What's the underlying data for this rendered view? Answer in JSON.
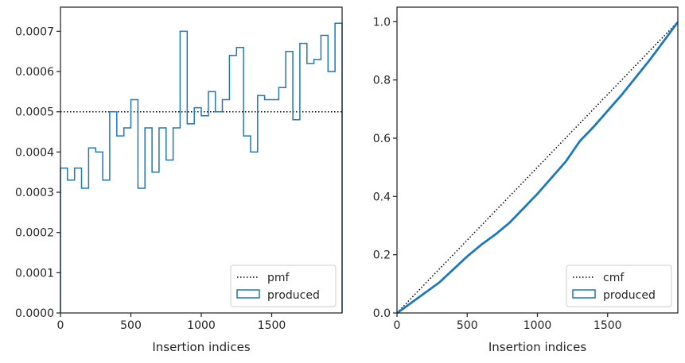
{
  "chart_data": [
    {
      "type": "step",
      "title": "",
      "xlabel": "Insertion indices",
      "ylabel": "",
      "xlim": [
        0,
        2000
      ],
      "ylim": [
        0,
        0.00076
      ],
      "xticks": [
        0,
        500,
        1000,
        1500
      ],
      "xtick_labels": [
        "0",
        "500",
        "1000",
        "1500"
      ],
      "yticks": [
        0,
        0.0001,
        0.0002,
        0.0003,
        0.0004,
        0.0005,
        0.0006,
        0.0007
      ],
      "ytick_labels": [
        "0.0000",
        "0.0001",
        "0.0002",
        "0.0003",
        "0.0004",
        "0.0005",
        "0.0006",
        "0.0007"
      ],
      "legend": {
        "location": "lower-right",
        "entries": [
          "pmf",
          "produced"
        ]
      },
      "series": [
        {
          "name": "pmf",
          "style": "dotted",
          "color": "#000000",
          "x": [
            0,
            2000
          ],
          "y": [
            0.0005,
            0.0005
          ]
        },
        {
          "name": "produced",
          "style": "step-histogram",
          "color": "#1f77b4",
          "bin_edges": [
            0,
            50,
            100,
            150,
            200,
            250,
            300,
            350,
            400,
            450,
            500,
            550,
            600,
            650,
            700,
            750,
            800,
            850,
            900,
            950,
            1000,
            1050,
            1100,
            1150,
            1200,
            1250,
            1300,
            1350,
            1400,
            1450,
            1500,
            1550,
            1600,
            1650,
            1700,
            1750,
            1800,
            1850,
            1900,
            1950,
            2000
          ],
          "values": [
            0.00036,
            0.00033,
            0.00036,
            0.00031,
            0.00041,
            0.0004,
            0.00033,
            0.0005,
            0.00044,
            0.00046,
            0.00053,
            0.00031,
            0.00046,
            0.00035,
            0.00046,
            0.00038,
            0.00046,
            0.0007,
            0.00047,
            0.00051,
            0.00049,
            0.00055,
            0.0005,
            0.00053,
            0.00064,
            0.00066,
            0.00044,
            0.0004,
            0.00054,
            0.00053,
            0.00053,
            0.00056,
            0.00065,
            0.00048,
            0.00067,
            0.00062,
            0.00063,
            0.00069,
            0.0006,
            0.00072
          ]
        }
      ]
    },
    {
      "type": "line",
      "title": "",
      "xlabel": "Insertion indices",
      "ylabel": "",
      "xlim": [
        0,
        2000
      ],
      "ylim": [
        0,
        1.05
      ],
      "xticks": [
        0,
        500,
        1000,
        1500
      ],
      "xtick_labels": [
        "0",
        "500",
        "1000",
        "1500"
      ],
      "yticks": [
        0,
        0.2,
        0.4,
        0.6,
        0.8,
        1.0
      ],
      "ytick_labels": [
        "0.0",
        "0.2",
        "0.4",
        "0.6",
        "0.8",
        "1.0"
      ],
      "legend": {
        "location": "lower-right",
        "entries": [
          "cmf",
          "produced"
        ]
      },
      "series": [
        {
          "name": "cmf",
          "style": "dotted",
          "color": "#000000",
          "x": [
            0,
            2000
          ],
          "y": [
            0,
            1
          ]
        },
        {
          "name": "produced",
          "style": "step-cumulative",
          "color": "#1f77b4",
          "x": [
            0,
            100,
            200,
            300,
            400,
            500,
            600,
            700,
            800,
            900,
            1000,
            1100,
            1200,
            1300,
            1400,
            1500,
            1600,
            1700,
            1800,
            1900,
            2000
          ],
          "y": [
            0,
            0.035,
            0.07,
            0.105,
            0.15,
            0.195,
            0.235,
            0.27,
            0.31,
            0.36,
            0.41,
            0.465,
            0.52,
            0.59,
            0.64,
            0.695,
            0.75,
            0.81,
            0.87,
            0.935,
            1.0
          ]
        }
      ]
    }
  ]
}
